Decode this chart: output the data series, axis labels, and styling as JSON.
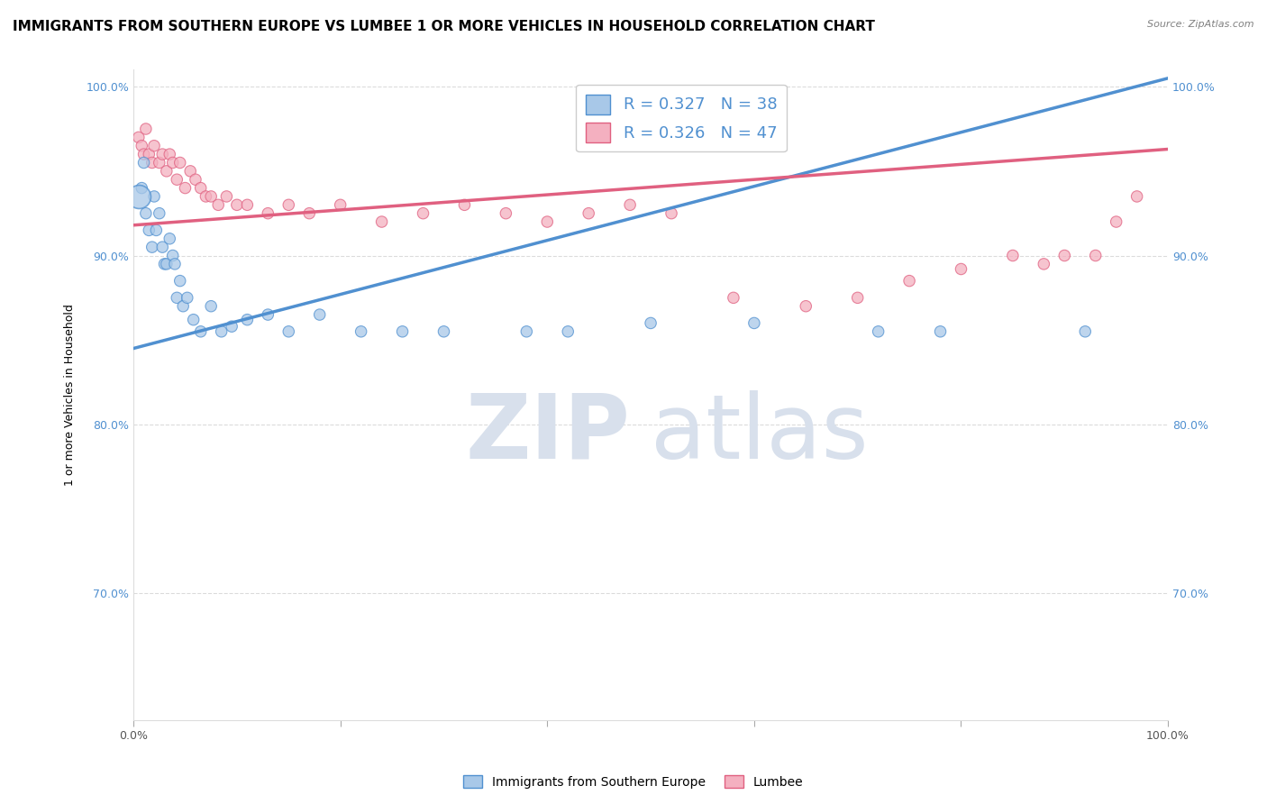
{
  "title": "IMMIGRANTS FROM SOUTHERN EUROPE VS LUMBEE 1 OR MORE VEHICLES IN HOUSEHOLD CORRELATION CHART",
  "source": "Source: ZipAtlas.com",
  "xlabel_blue": "Immigrants from Southern Europe",
  "xlabel_pink": "Lumbee",
  "ylabel": "1 or more Vehicles in Household",
  "R_blue": 0.327,
  "N_blue": 38,
  "R_pink": 0.326,
  "N_pink": 47,
  "blue_color": "#a8c8e8",
  "pink_color": "#f4b0c0",
  "blue_line_color": "#5090d0",
  "pink_line_color": "#e06080",
  "xmin": 0.0,
  "xmax": 1.0,
  "ymin": 0.625,
  "ymax": 1.01,
  "yticks": [
    0.7,
    0.8,
    0.9,
    1.0
  ],
  "ytick_labels": [
    "70.0%",
    "80.0%",
    "90.0%",
    "100.0%"
  ],
  "blue_line_y_start": 0.845,
  "blue_line_y_end": 1.005,
  "pink_line_y_start": 0.918,
  "pink_line_y_end": 0.963,
  "blue_scatter_x": [
    0.005,
    0.008,
    0.01,
    0.012,
    0.015,
    0.018,
    0.02,
    0.022,
    0.025,
    0.028,
    0.03,
    0.032,
    0.035,
    0.038,
    0.04,
    0.042,
    0.045,
    0.048,
    0.052,
    0.058,
    0.065,
    0.075,
    0.085,
    0.095,
    0.11,
    0.13,
    0.15,
    0.18,
    0.22,
    0.26,
    0.3,
    0.38,
    0.42,
    0.5,
    0.6,
    0.72,
    0.78,
    0.92
  ],
  "blue_scatter_y": [
    0.935,
    0.94,
    0.955,
    0.925,
    0.915,
    0.905,
    0.935,
    0.915,
    0.925,
    0.905,
    0.895,
    0.895,
    0.91,
    0.9,
    0.895,
    0.875,
    0.885,
    0.87,
    0.875,
    0.862,
    0.855,
    0.87,
    0.855,
    0.858,
    0.862,
    0.865,
    0.855,
    0.865,
    0.855,
    0.855,
    0.855,
    0.855,
    0.855,
    0.86,
    0.86,
    0.855,
    0.855,
    0.855
  ],
  "blue_scatter_size": [
    350,
    80,
    80,
    80,
    80,
    80,
    80,
    80,
    80,
    80,
    80,
    80,
    80,
    80,
    80,
    80,
    80,
    80,
    80,
    80,
    80,
    80,
    80,
    80,
    80,
    80,
    80,
    80,
    80,
    80,
    80,
    80,
    80,
    80,
    80,
    80,
    80,
    80
  ],
  "pink_scatter_x": [
    0.005,
    0.008,
    0.01,
    0.012,
    0.015,
    0.018,
    0.02,
    0.025,
    0.028,
    0.032,
    0.035,
    0.038,
    0.042,
    0.045,
    0.05,
    0.055,
    0.06,
    0.065,
    0.07,
    0.075,
    0.082,
    0.09,
    0.1,
    0.11,
    0.13,
    0.15,
    0.17,
    0.2,
    0.24,
    0.28,
    0.32,
    0.36,
    0.4,
    0.44,
    0.48,
    0.52,
    0.58,
    0.65,
    0.7,
    0.75,
    0.8,
    0.85,
    0.88,
    0.9,
    0.93,
    0.95,
    0.97
  ],
  "pink_scatter_y": [
    0.97,
    0.965,
    0.96,
    0.975,
    0.96,
    0.955,
    0.965,
    0.955,
    0.96,
    0.95,
    0.96,
    0.955,
    0.945,
    0.955,
    0.94,
    0.95,
    0.945,
    0.94,
    0.935,
    0.935,
    0.93,
    0.935,
    0.93,
    0.93,
    0.925,
    0.93,
    0.925,
    0.93,
    0.92,
    0.925,
    0.93,
    0.925,
    0.92,
    0.925,
    0.93,
    0.925,
    0.875,
    0.87,
    0.875,
    0.885,
    0.892,
    0.9,
    0.895,
    0.9,
    0.9,
    0.92,
    0.935
  ],
  "pink_scatter_size": [
    80,
    80,
    80,
    80,
    80,
    80,
    80,
    80,
    80,
    80,
    80,
    80,
    80,
    80,
    80,
    80,
    80,
    80,
    80,
    80,
    80,
    80,
    80,
    80,
    80,
    80,
    80,
    80,
    80,
    80,
    80,
    80,
    80,
    80,
    80,
    80,
    80,
    80,
    80,
    80,
    80,
    80,
    80,
    80,
    80,
    80,
    80
  ],
  "watermark_zip": "ZIP",
  "watermark_atlas": "atlas",
  "watermark_color": "#d8e0ec",
  "title_fontsize": 11,
  "axis_label_fontsize": 9,
  "tick_fontsize": 9,
  "legend_fontsize": 13,
  "source_fontsize": 8
}
